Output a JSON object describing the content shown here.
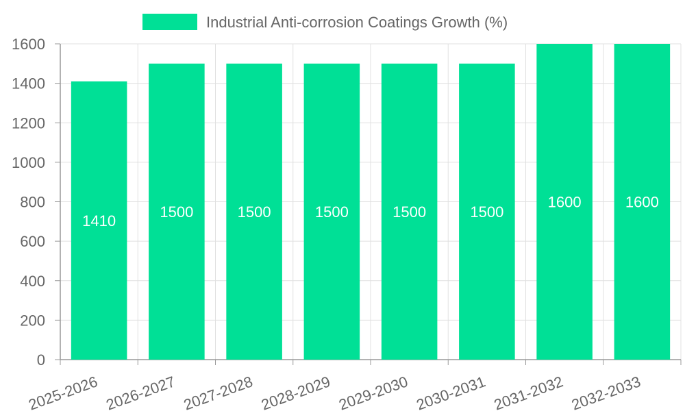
{
  "chart_data": {
    "type": "bar",
    "categories": [
      "2025-2026",
      "2026-2027",
      "2027-2028",
      "2028-2029",
      "2029-2030",
      "2030-2031",
      "2031-2032",
      "2032-2033"
    ],
    "series": [
      {
        "name": "Industrial Anti-corrosion Coatings Growth (%)",
        "values": [
          1410,
          1500,
          1500,
          1500,
          1500,
          1500,
          1600,
          1600
        ],
        "color": "#00e096"
      }
    ],
    "data_labels": [
      "1410",
      "1500",
      "1500",
      "1500",
      "1500",
      "1500",
      "1600",
      "1600"
    ],
    "ylim": [
      0,
      1600
    ],
    "yticks": [
      0,
      200,
      400,
      600,
      800,
      1000,
      1200,
      1400,
      1600
    ],
    "grid": true,
    "legend_position": "top-center",
    "colors": {
      "grid": "#e0e0e0",
      "axis": "#999999",
      "text": "#666666",
      "label": "#ffffff"
    }
  }
}
